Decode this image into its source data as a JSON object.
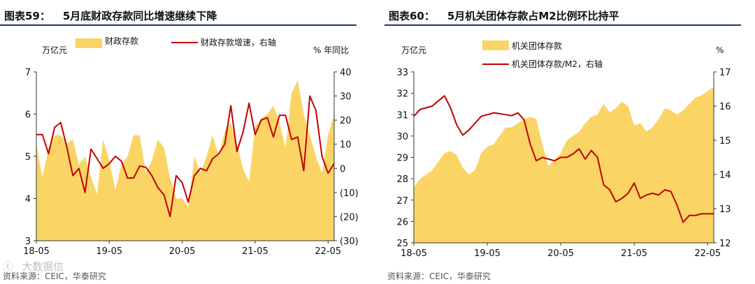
{
  "watermark": "ⓒ  大数据信",
  "colors": {
    "area": "#FAD565",
    "line": "#C00000",
    "rule": "#1F3864",
    "axis": "#333333"
  },
  "chart_data": [
    {
      "type": "area+line",
      "title_label": "图表59：",
      "title": "5月底财政存款同比增速继续下降",
      "left_unit": "万亿元",
      "right_unit": "% 年同比",
      "source": "资料来源：CEIC，华泰研究",
      "x_ticks": [
        "18-05",
        "19-05",
        "20-05",
        "21-05",
        "22-05"
      ],
      "x_tick_index": [
        0,
        12,
        24,
        36,
        48
      ],
      "left_axis": {
        "min": 3,
        "max": 7,
        "ticks": [
          "3",
          "4",
          "5",
          "6",
          "7"
        ]
      },
      "right_axis": {
        "min": -30,
        "max": 40,
        "ticks": [
          "(30)",
          "(20)",
          "(10)",
          "0",
          "10",
          "20",
          "30",
          "40"
        ],
        "tick_values": [
          -30,
          -20,
          -10,
          0,
          10,
          20,
          30,
          40
        ]
      },
      "series": [
        {
          "name": "财政存款",
          "kind": "area",
          "axis": "left",
          "values": [
            5.3,
            4.5,
            5.2,
            5.5,
            5.5,
            5.3,
            5.4,
            4.8,
            5.0,
            4.5,
            4.1,
            5.4,
            4.9,
            4.2,
            4.8,
            5.0,
            5.5,
            5.5,
            4.6,
            4.9,
            5.4,
            5.2,
            4.5,
            4.0,
            4.0,
            3.8,
            5.0,
            4.6,
            5.0,
            5.5,
            5.0,
            5.6,
            5.8,
            5.3,
            4.7,
            4.4,
            5.7,
            5.9,
            6.0,
            6.2,
            5.8,
            5.2,
            6.5,
            6.8,
            6.0,
            5.5,
            5.0,
            4.6,
            5.5,
            6.0
          ]
        },
        {
          "name": "财政存款增速，右轴",
          "kind": "line",
          "axis": "right",
          "values": [
            14,
            14,
            6,
            17,
            19,
            9,
            -3,
            0,
            -10,
            8,
            4,
            0,
            2,
            5,
            3,
            -4,
            -4,
            1,
            0.5,
            -3,
            -8,
            -11,
            -20,
            -3,
            -6,
            -14,
            -3,
            0,
            -1,
            4,
            6,
            10,
            26,
            7,
            15,
            27,
            14,
            20,
            21,
            13,
            22,
            22,
            12,
            13,
            -1,
            30,
            24,
            5,
            -2,
            2
          ]
        }
      ]
    },
    {
      "type": "area+line",
      "title_label": "图表60：",
      "title": "5月机关团体存款占M2比例环比持平",
      "left_unit": "万亿元",
      "right_unit": "%",
      "source": "资料来源：CEIC，华泰研究",
      "x_ticks": [
        "18-05",
        "19-05",
        "20-05",
        "21-05",
        "22-05"
      ],
      "x_tick_index": [
        0,
        12,
        24,
        36,
        48
      ],
      "left_axis": {
        "min": 25,
        "max": 33,
        "ticks": [
          "25",
          "26",
          "27",
          "28",
          "29",
          "30",
          "31",
          "32",
          "33"
        ]
      },
      "right_axis": {
        "min": 12,
        "max": 17,
        "ticks": [
          "12",
          "13",
          "14",
          "15",
          "16",
          "17"
        ]
      },
      "series": [
        {
          "name": "机关团体存款",
          "kind": "area",
          "axis": "left",
          "values": [
            27.6,
            28.0,
            28.2,
            28.4,
            28.8,
            29.2,
            29.3,
            29.1,
            28.5,
            28.2,
            28.4,
            29.2,
            29.5,
            29.6,
            30.0,
            30.4,
            30.4,
            30.6,
            30.8,
            30.9,
            30.8,
            29.6,
            28.6,
            28.9,
            29.2,
            29.8,
            30.0,
            30.2,
            30.6,
            30.9,
            31.0,
            31.5,
            31.1,
            31.3,
            31.6,
            31.4,
            30.5,
            30.6,
            30.2,
            30.4,
            30.8,
            31.3,
            31.2,
            31.0,
            31.2,
            31.5,
            31.8,
            31.9,
            32.1,
            32.3
          ]
        },
        {
          "name": "机关团体存款/M2，右轴",
          "kind": "line",
          "axis": "right",
          "values": [
            15.7,
            15.9,
            15.95,
            16.0,
            16.15,
            16.3,
            15.95,
            15.45,
            15.15,
            15.3,
            15.5,
            15.7,
            15.75,
            15.8,
            15.78,
            15.75,
            15.72,
            15.8,
            15.6,
            14.9,
            14.4,
            14.5,
            14.45,
            14.4,
            14.5,
            14.5,
            14.6,
            14.75,
            14.45,
            14.7,
            14.5,
            13.7,
            13.55,
            13.2,
            13.3,
            13.45,
            13.75,
            13.3,
            13.4,
            13.45,
            13.4,
            13.55,
            13.5,
            13.1,
            12.6,
            12.8,
            12.8,
            12.85,
            12.85,
            12.85
          ]
        }
      ]
    }
  ]
}
